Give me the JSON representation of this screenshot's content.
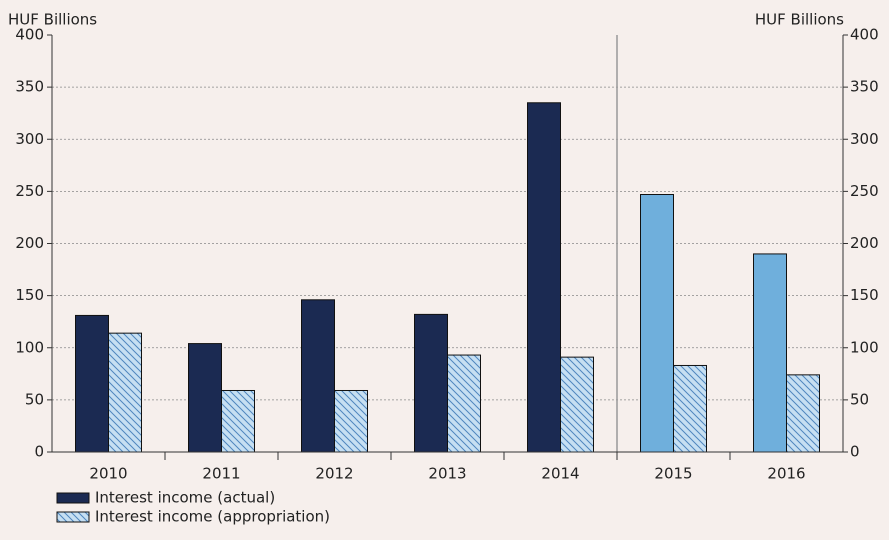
{
  "chart_data": {
    "type": "bar",
    "ylabel": "HUF Billions",
    "y2label": "HUF Billions",
    "categories": [
      "2010",
      "2011",
      "2012",
      "2013",
      "2014",
      "2015",
      "2016"
    ],
    "series": [
      {
        "name": "Interest income (actual)",
        "color": "#1b2a52",
        "point_colors": [
          "#1b2a52",
          "#1b2a52",
          "#1b2a52",
          "#1b2a52",
          "#1b2a52",
          "#6fafdc",
          "#6fafdc"
        ],
        "values": [
          131,
          104,
          146,
          132,
          335,
          247,
          190
        ]
      },
      {
        "name": "Interest income (appropriation)",
        "color": "#c6dff2",
        "hatch": "#4f86be",
        "values": [
          114,
          59,
          59,
          93,
          91,
          83,
          74
        ]
      }
    ],
    "ylim": [
      0,
      400
    ],
    "yticks": [
      0,
      50,
      100,
      150,
      200,
      250,
      300,
      350,
      400
    ],
    "y2lim": [
      0,
      400
    ],
    "y2ticks": [
      0,
      50,
      100,
      150,
      200,
      250,
      300,
      350,
      400
    ],
    "grid": true,
    "separator_after": "2014",
    "legend": "bottom-left"
  }
}
